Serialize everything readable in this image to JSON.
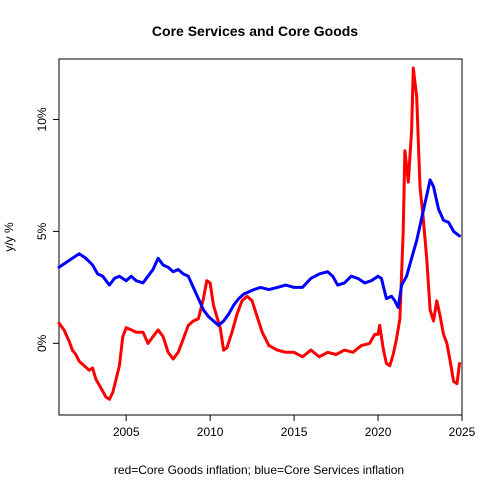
{
  "chart_data": {
    "type": "line",
    "title": "Core Services and Core Goods",
    "xlabel": "red=Core Goods inflation; blue=Core Services inflation",
    "ylabel": "y/y %",
    "xlim": [
      2001,
      2025
    ],
    "ylim": [
      -3.2,
      12.7
    ],
    "x_ticks": [
      2005,
      2010,
      2015,
      2020,
      2025
    ],
    "y_ticks": [
      0,
      5,
      10
    ],
    "y_tick_labels": [
      "0%",
      "5%",
      "10%"
    ],
    "grid": false,
    "series": [
      {
        "id": "goods",
        "color": "#ff0000",
        "points": [
          [
            2001.0,
            0.9
          ],
          [
            2001.3,
            0.6
          ],
          [
            2001.6,
            0.1
          ],
          [
            2001.8,
            -0.3
          ],
          [
            2002.0,
            -0.5
          ],
          [
            2002.2,
            -0.8
          ],
          [
            2002.5,
            -1.0
          ],
          [
            2002.8,
            -1.2
          ],
          [
            2003.0,
            -1.1
          ],
          [
            2003.2,
            -1.6
          ],
          [
            2003.5,
            -2.0
          ],
          [
            2003.8,
            -2.4
          ],
          [
            2004.0,
            -2.5
          ],
          [
            2004.2,
            -2.2
          ],
          [
            2004.4,
            -1.6
          ],
          [
            2004.6,
            -1.0
          ],
          [
            2004.8,
            0.3
          ],
          [
            2005.0,
            0.7
          ],
          [
            2005.3,
            0.6
          ],
          [
            2005.6,
            0.5
          ],
          [
            2006.0,
            0.5
          ],
          [
            2006.3,
            0.0
          ],
          [
            2006.6,
            0.3
          ],
          [
            2006.9,
            0.6
          ],
          [
            2007.2,
            0.3
          ],
          [
            2007.5,
            -0.4
          ],
          [
            2007.8,
            -0.7
          ],
          [
            2008.1,
            -0.4
          ],
          [
            2008.4,
            0.2
          ],
          [
            2008.7,
            0.8
          ],
          [
            2009.0,
            1.0
          ],
          [
            2009.3,
            1.1
          ],
          [
            2009.6,
            2.0
          ],
          [
            2009.8,
            2.8
          ],
          [
            2010.0,
            2.7
          ],
          [
            2010.2,
            1.7
          ],
          [
            2010.4,
            1.2
          ],
          [
            2010.6,
            0.7
          ],
          [
            2010.8,
            -0.3
          ],
          [
            2011.0,
            -0.2
          ],
          [
            2011.3,
            0.5
          ],
          [
            2011.6,
            1.3
          ],
          [
            2011.9,
            1.9
          ],
          [
            2012.2,
            2.1
          ],
          [
            2012.5,
            1.9
          ],
          [
            2012.8,
            1.2
          ],
          [
            2013.1,
            0.5
          ],
          [
            2013.5,
            -0.1
          ],
          [
            2014.0,
            -0.3
          ],
          [
            2014.5,
            -0.4
          ],
          [
            2015.0,
            -0.4
          ],
          [
            2015.5,
            -0.6
          ],
          [
            2016.0,
            -0.3
          ],
          [
            2016.5,
            -0.6
          ],
          [
            2017.0,
            -0.4
          ],
          [
            2017.5,
            -0.5
          ],
          [
            2018.0,
            -0.3
          ],
          [
            2018.5,
            -0.4
          ],
          [
            2019.0,
            -0.1
          ],
          [
            2019.5,
            0.0
          ],
          [
            2019.8,
            0.4
          ],
          [
            2020.0,
            0.4
          ],
          [
            2020.1,
            0.8
          ],
          [
            2020.3,
            -0.2
          ],
          [
            2020.5,
            -0.9
          ],
          [
            2020.7,
            -1.0
          ],
          [
            2020.9,
            -0.5
          ],
          [
            2021.1,
            0.2
          ],
          [
            2021.3,
            1.1
          ],
          [
            2021.5,
            5.0
          ],
          [
            2021.6,
            8.6
          ],
          [
            2021.8,
            7.2
          ],
          [
            2022.0,
            9.5
          ],
          [
            2022.1,
            12.3
          ],
          [
            2022.3,
            11.0
          ],
          [
            2022.5,
            7.0
          ],
          [
            2022.7,
            5.5
          ],
          [
            2022.9,
            3.8
          ],
          [
            2023.1,
            1.5
          ],
          [
            2023.3,
            1.0
          ],
          [
            2023.5,
            1.9
          ],
          [
            2023.7,
            1.2
          ],
          [
            2023.9,
            0.4
          ],
          [
            2024.1,
            0.0
          ],
          [
            2024.3,
            -0.8
          ],
          [
            2024.5,
            -1.7
          ],
          [
            2024.7,
            -1.8
          ],
          [
            2024.85,
            -0.9
          ]
        ]
      },
      {
        "id": "services",
        "color": "#0000ff",
        "points": [
          [
            2001.0,
            3.4
          ],
          [
            2001.4,
            3.6
          ],
          [
            2001.8,
            3.8
          ],
          [
            2002.2,
            4.0
          ],
          [
            2002.6,
            3.8
          ],
          [
            2003.0,
            3.5
          ],
          [
            2003.3,
            3.1
          ],
          [
            2003.6,
            3.0
          ],
          [
            2004.0,
            2.6
          ],
          [
            2004.3,
            2.9
          ],
          [
            2004.6,
            3.0
          ],
          [
            2005.0,
            2.8
          ],
          [
            2005.3,
            3.0
          ],
          [
            2005.6,
            2.8
          ],
          [
            2006.0,
            2.7
          ],
          [
            2006.3,
            3.0
          ],
          [
            2006.6,
            3.3
          ],
          [
            2006.9,
            3.8
          ],
          [
            2007.2,
            3.5
          ],
          [
            2007.5,
            3.4
          ],
          [
            2007.8,
            3.2
          ],
          [
            2008.1,
            3.3
          ],
          [
            2008.4,
            3.1
          ],
          [
            2008.7,
            3.0
          ],
          [
            2009.0,
            2.5
          ],
          [
            2009.3,
            2.0
          ],
          [
            2009.6,
            1.5
          ],
          [
            2009.9,
            1.2
          ],
          [
            2010.2,
            1.0
          ],
          [
            2010.5,
            0.8
          ],
          [
            2010.8,
            1.0
          ],
          [
            2011.1,
            1.3
          ],
          [
            2011.4,
            1.7
          ],
          [
            2011.7,
            2.0
          ],
          [
            2012.0,
            2.2
          ],
          [
            2012.3,
            2.3
          ],
          [
            2012.6,
            2.4
          ],
          [
            2013.0,
            2.5
          ],
          [
            2013.5,
            2.4
          ],
          [
            2014.0,
            2.5
          ],
          [
            2014.5,
            2.6
          ],
          [
            2015.0,
            2.5
          ],
          [
            2015.5,
            2.5
          ],
          [
            2016.0,
            2.9
          ],
          [
            2016.5,
            3.1
          ],
          [
            2017.0,
            3.2
          ],
          [
            2017.3,
            3.0
          ],
          [
            2017.6,
            2.6
          ],
          [
            2018.0,
            2.7
          ],
          [
            2018.4,
            3.0
          ],
          [
            2018.8,
            2.9
          ],
          [
            2019.2,
            2.7
          ],
          [
            2019.6,
            2.8
          ],
          [
            2020.0,
            3.0
          ],
          [
            2020.2,
            2.9
          ],
          [
            2020.5,
            2.0
          ],
          [
            2020.8,
            2.1
          ],
          [
            2021.0,
            1.9
          ],
          [
            2021.2,
            1.6
          ],
          [
            2021.4,
            2.6
          ],
          [
            2021.7,
            3.0
          ],
          [
            2022.0,
            3.8
          ],
          [
            2022.3,
            4.6
          ],
          [
            2022.6,
            5.6
          ],
          [
            2022.9,
            6.6
          ],
          [
            2023.1,
            7.3
          ],
          [
            2023.3,
            7.0
          ],
          [
            2023.6,
            6.0
          ],
          [
            2023.9,
            5.5
          ],
          [
            2024.2,
            5.4
          ],
          [
            2024.5,
            5.0
          ],
          [
            2024.85,
            4.8
          ]
        ]
      }
    ]
  }
}
